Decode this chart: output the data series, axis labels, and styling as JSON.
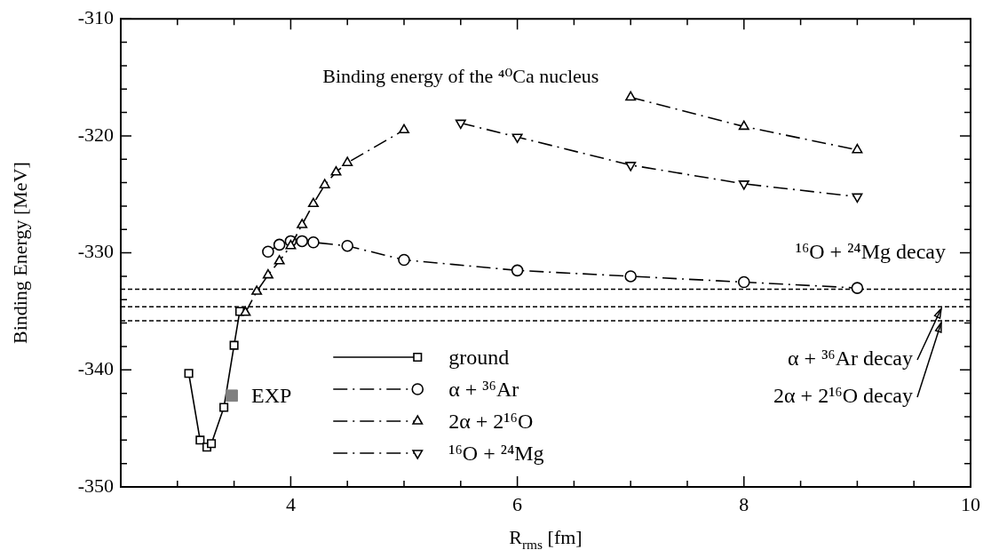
{
  "chart_data": {
    "type": "line",
    "title": "Binding energy of the ⁴⁰Ca nucleus",
    "xlabel": "R$_{rms}$ [fm]",
    "ylabel": "Binding Energy [MeV]",
    "xlim": [
      2.5,
      10
    ],
    "ylim": [
      -350,
      -310
    ],
    "xticks": [
      {
        "value": 3,
        "label": null
      },
      {
        "value": 3.5,
        "label": null
      },
      4,
      {
        "value": 4.5,
        "label": null
      },
      {
        "value": 5,
        "label": null
      },
      {
        "value": 5.5,
        "label": null
      },
      6,
      {
        "value": 6.5,
        "label": null
      },
      {
        "value": 7,
        "label": null
      },
      {
        "value": 7.5,
        "label": null
      },
      8,
      {
        "value": 8.5,
        "label": null
      },
      {
        "value": 9,
        "label": null
      },
      {
        "value": 9.5,
        "label": null
      },
      10
    ],
    "yticks": [
      -350,
      {
        "value": -348,
        "label": null
      },
      {
        "value": -346,
        "label": null
      },
      {
        "value": -344,
        "label": null
      },
      {
        "value": -342,
        "label": null
      },
      -340,
      {
        "value": -338,
        "label": null
      },
      {
        "value": -336,
        "label": null
      },
      {
        "value": -334,
        "label": null
      },
      {
        "value": -332,
        "label": null
      },
      -330,
      {
        "value": -328,
        "label": null
      },
      {
        "value": -326,
        "label": null
      },
      {
        "value": -324,
        "label": null
      },
      {
        "value": -322,
        "label": null
      },
      -320,
      {
        "value": -318,
        "label": null
      },
      {
        "value": -316,
        "label": null
      },
      {
        "value": -314,
        "label": null
      },
      {
        "value": -312,
        "label": null
      },
      -310
    ],
    "grid": false,
    "legend": "bottom",
    "series": [
      {
        "name": "ground",
        "color": "#000000",
        "marker": "square",
        "line_style": "solid",
        "x": [
          3.1,
          3.2,
          3.26,
          3.3,
          3.41,
          3.5,
          3.55
        ],
        "values": [
          -340.3,
          -346.0,
          -346.6,
          -346.3,
          -343.2,
          -337.9,
          -335.0
        ]
      },
      {
        "name": "α + ³⁶Ar",
        "color": "#000000",
        "marker": "circle",
        "line_style": "dashed",
        "x": [
          3.8,
          3.9,
          4.0,
          4.1,
          4.2,
          4.5,
          5,
          6,
          7,
          8,
          9
        ],
        "values": [
          -329.9,
          -329.3,
          -329.0,
          -329.0,
          -329.1,
          -329.4,
          -330.6,
          -331.5,
          -332.0,
          -332.5,
          -333.0
        ]
      },
      {
        "name": "2α + 2¹⁶O",
        "color": "#000000",
        "marker": "triangle",
        "line_style": "dashed",
        "x": [
          3.6,
          3.7,
          3.8,
          3.9,
          4.0,
          4.1,
          4.2,
          4.3,
          4.4,
          4.5,
          5,
          6,
          7,
          8,
          9
        ],
        "values": [
          -335.1,
          -333.3,
          -331.9,
          -330.7,
          -329.4,
          -327.6,
          -325.8,
          -324.2,
          -323.1,
          -322.3,
          -319.5,
          null,
          -316.7,
          -319.2,
          -321.2
        ]
      },
      {
        "name": "¹⁶O + ²⁴Mg",
        "color": "#000000",
        "marker": "triangle-down",
        "line_style": "dashed",
        "x": [
          5.5,
          6,
          7,
          8,
          9
        ],
        "values": [
          -318.9,
          -320.1,
          -322.5,
          -324.1,
          -325.2
        ]
      },
      {
        "name": "EXP",
        "type": "scatter",
        "color": "#808080",
        "marker": "square",
        "x": [
          3.48
        ],
        "values": [
          -342.2
        ]
      }
    ],
    "ref_lines": [
      {
        "axis": "y",
        "value": -333.1,
        "label": "¹⁶O + ²⁴Mg decay"
      },
      {
        "axis": "y",
        "value": -334.6,
        "label": "α + ³⁶Ar decay"
      },
      {
        "axis": "y",
        "value": -335.8,
        "label": "2α + 2¹⁶O decay"
      }
    ]
  }
}
